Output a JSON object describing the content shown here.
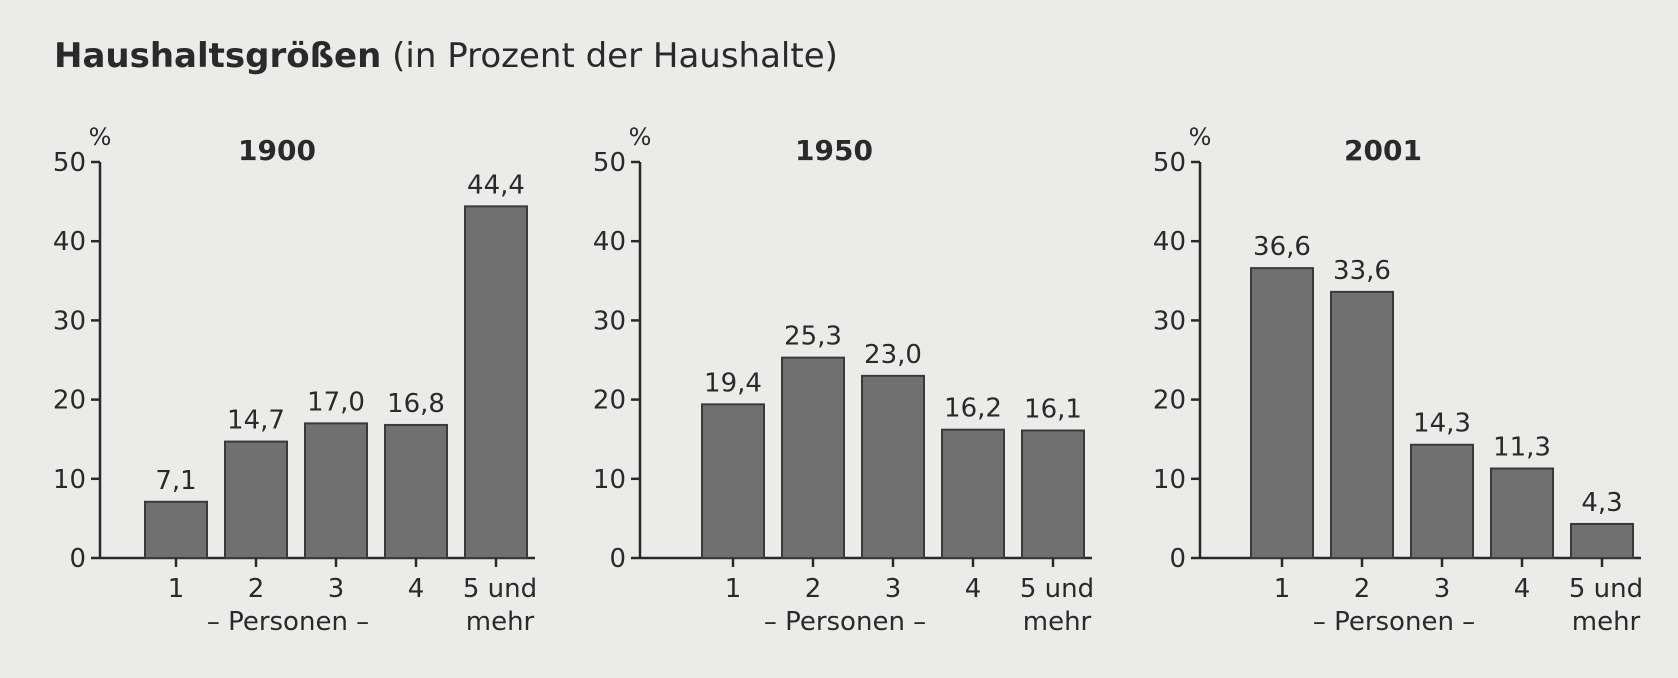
{
  "title": {
    "bold": "Haushaltsgrößen",
    "rest": " (in Prozent der Haushalte)"
  },
  "chart_data": [
    {
      "type": "bar",
      "title": "1900",
      "ylabel": "%",
      "ylim": [
        0,
        50
      ],
      "yticks": [
        "0",
        "10",
        "20",
        "30",
        "40",
        "50"
      ],
      "categories": [
        "1",
        "2",
        "3",
        "4",
        "5 und mehr"
      ],
      "category_lines": [
        [
          "1"
        ],
        [
          "2"
        ],
        [
          "3"
        ],
        [
          "4"
        ],
        [
          "5 und",
          "mehr"
        ]
      ],
      "xlabel": "– Personen –",
      "values": [
        7.1,
        14.7,
        17.0,
        16.8,
        44.4
      ],
      "value_labels": [
        "7,1",
        "14,7",
        "17,0",
        "16,8",
        "44,4"
      ],
      "grid": false,
      "bar_color": "#707070"
    },
    {
      "type": "bar",
      "title": "1950",
      "ylabel": "%",
      "ylim": [
        0,
        50
      ],
      "yticks": [
        "0",
        "10",
        "20",
        "30",
        "40",
        "50"
      ],
      "categories": [
        "1",
        "2",
        "3",
        "4",
        "5 und mehr"
      ],
      "category_lines": [
        [
          "1"
        ],
        [
          "2"
        ],
        [
          "3"
        ],
        [
          "4"
        ],
        [
          "5 und",
          "mehr"
        ]
      ],
      "xlabel": "– Personen –",
      "values": [
        19.4,
        25.3,
        23.0,
        16.2,
        16.1
      ],
      "value_labels": [
        "19,4",
        "25,3",
        "23,0",
        "16,2",
        "16,1"
      ],
      "grid": false,
      "bar_color": "#707070"
    },
    {
      "type": "bar",
      "title": "2001",
      "ylabel": "%",
      "ylim": [
        0,
        50
      ],
      "yticks": [
        "0",
        "10",
        "20",
        "30",
        "40",
        "50"
      ],
      "categories": [
        "1",
        "2",
        "3",
        "4",
        "5 und mehr"
      ],
      "category_lines": [
        [
          "1"
        ],
        [
          "2"
        ],
        [
          "3"
        ],
        [
          "4"
        ],
        [
          "5 und",
          "mehr"
        ]
      ],
      "xlabel": "– Personen –",
      "values": [
        36.6,
        33.6,
        14.3,
        11.3,
        4.3
      ],
      "value_labels": [
        "36,6",
        "33,6",
        "14,3",
        "11,3",
        "4,3"
      ],
      "grid": false,
      "bar_color": "#707070"
    }
  ]
}
